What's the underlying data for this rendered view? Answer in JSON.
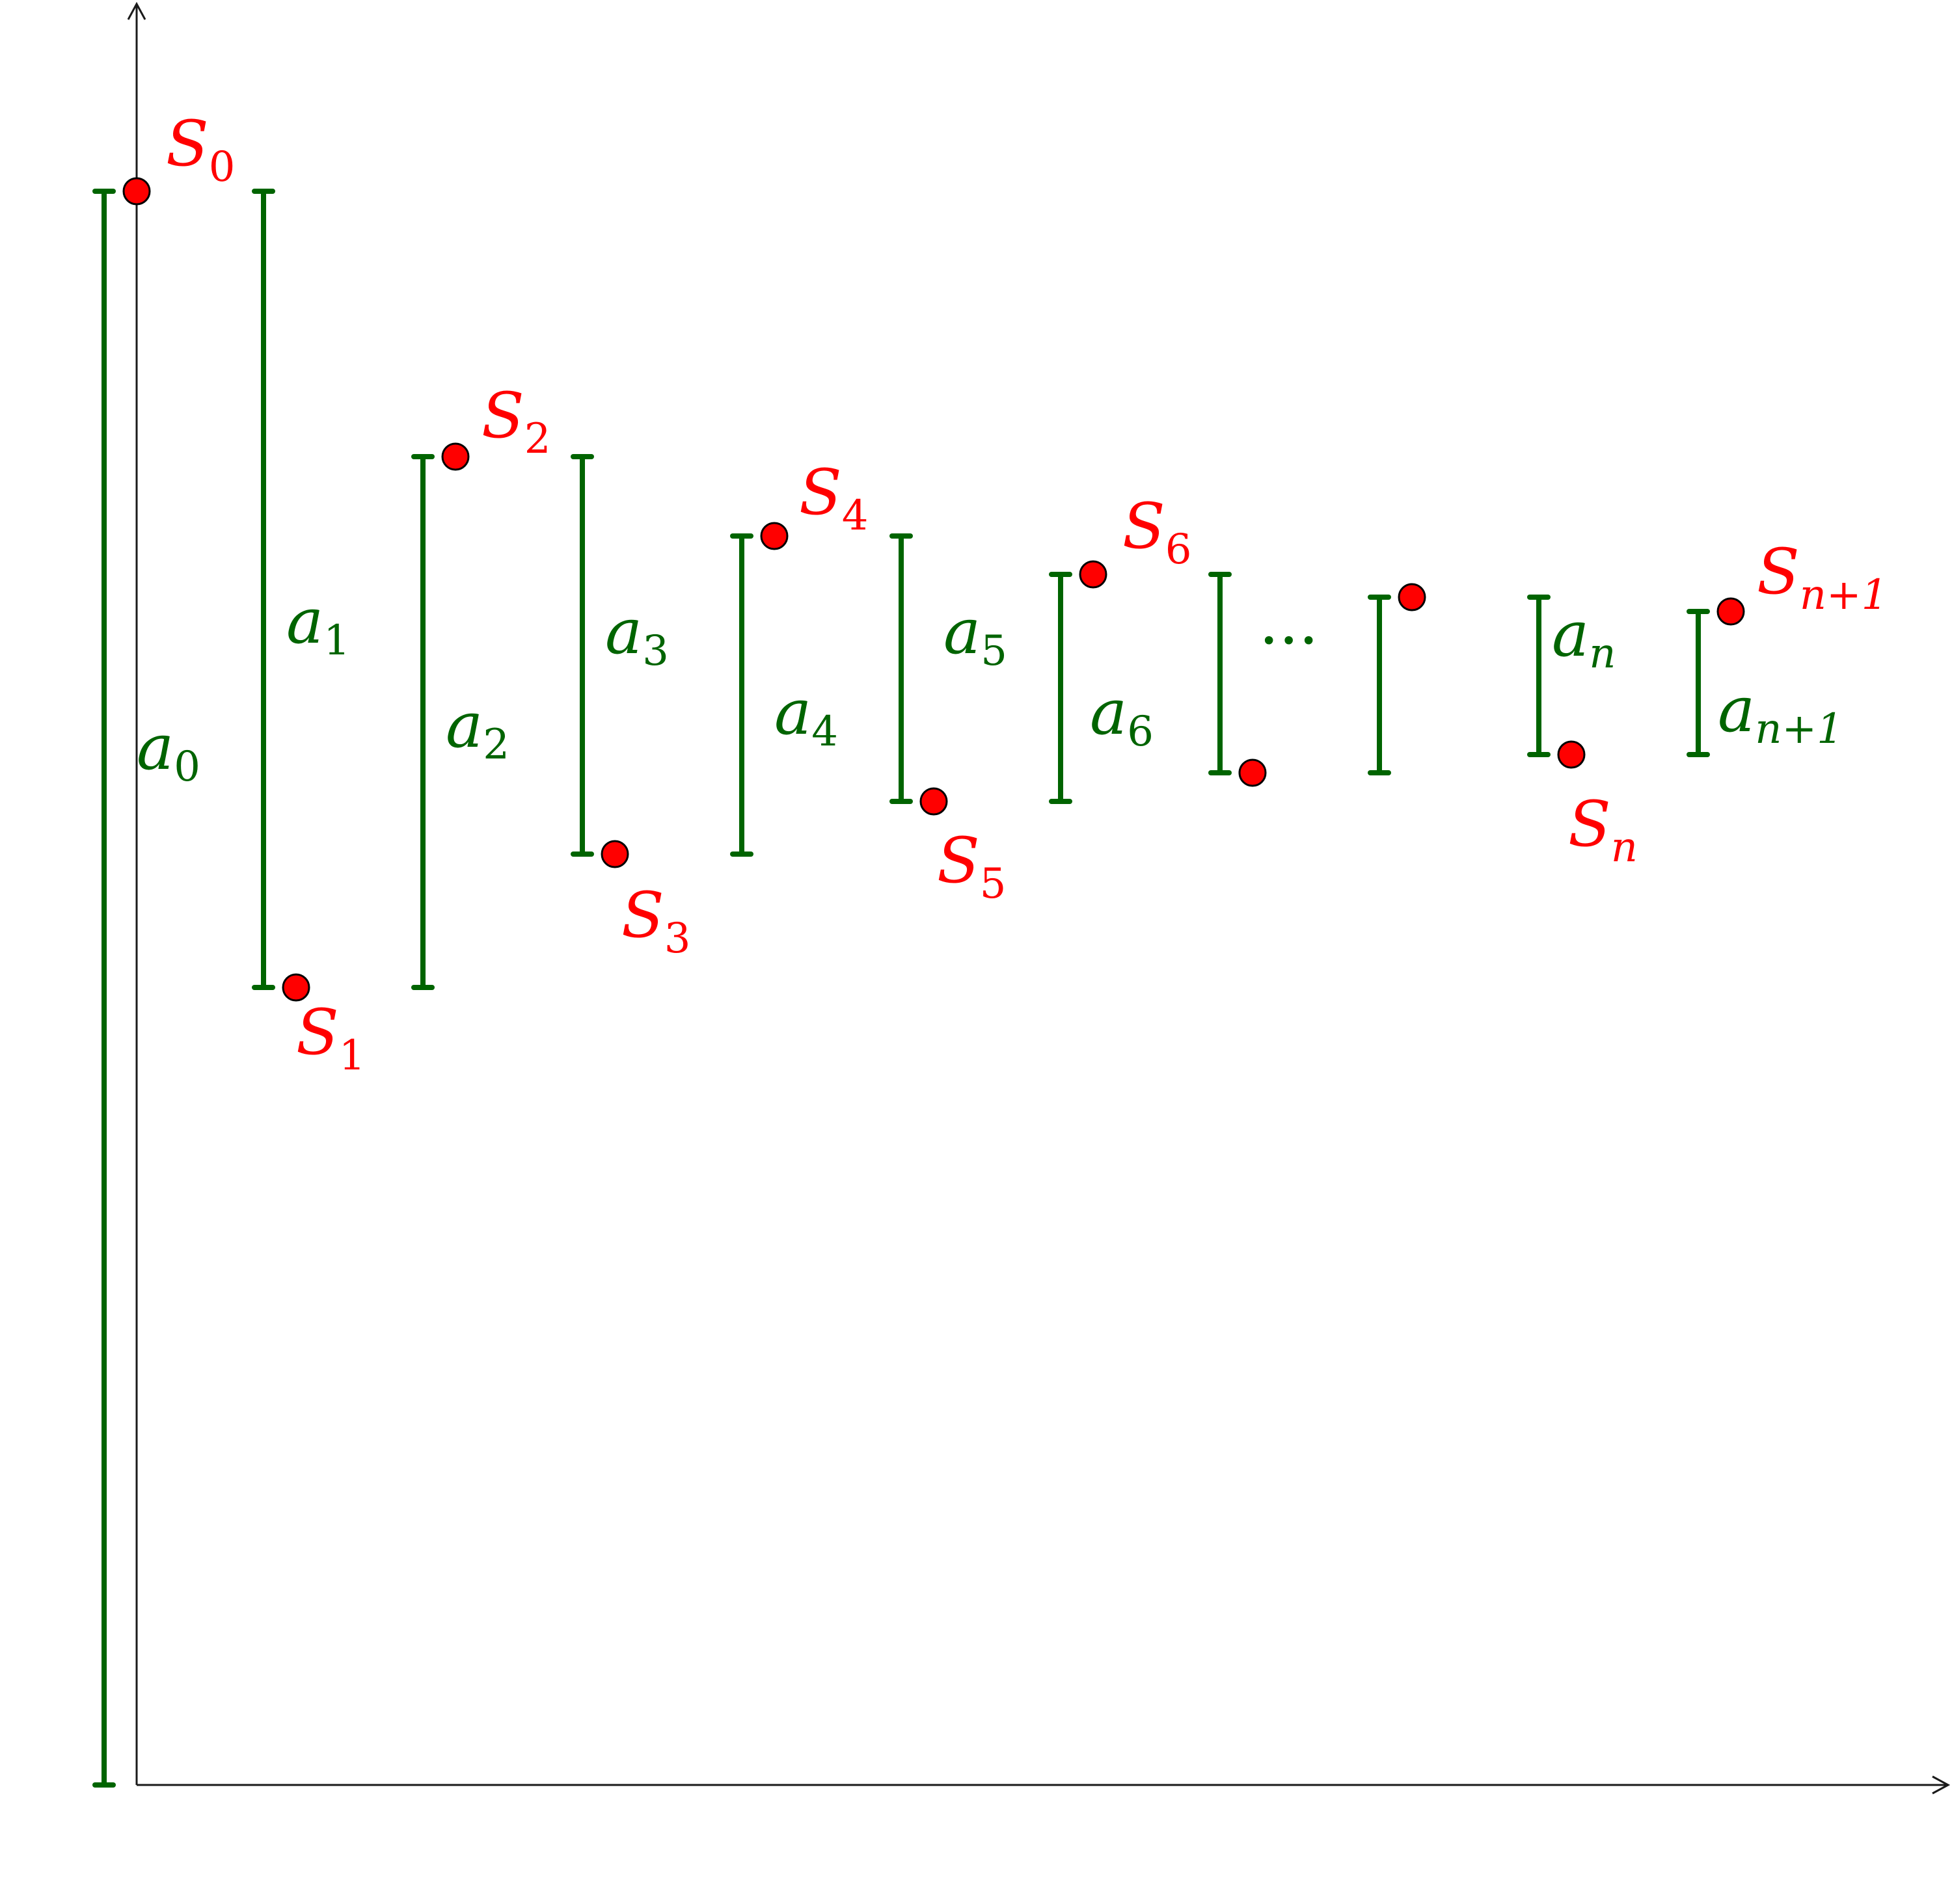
{
  "diagram": {
    "terms": [
      {
        "name": "a",
        "sub": "0"
      },
      {
        "name": "a",
        "sub": "1"
      },
      {
        "name": "a",
        "sub": "2"
      },
      {
        "name": "a",
        "sub": "3"
      },
      {
        "name": "a",
        "sub": "4"
      },
      {
        "name": "a",
        "sub": "5"
      },
      {
        "name": "a",
        "sub": "6"
      },
      {
        "name": "a",
        "sub": "n"
      },
      {
        "name": "a",
        "sub": "n+1"
      }
    ],
    "sums": [
      {
        "name": "S",
        "sub": "0"
      },
      {
        "name": "S",
        "sub": "1"
      },
      {
        "name": "S",
        "sub": "2"
      },
      {
        "name": "S",
        "sub": "3"
      },
      {
        "name": "S",
        "sub": "4"
      },
      {
        "name": "S",
        "sub": "5"
      },
      {
        "name": "S",
        "sub": "6"
      },
      {
        "name": "S",
        "sub": "n"
      },
      {
        "name": "S",
        "sub": "n+1"
      }
    ],
    "ellipsis": "···",
    "colors": {
      "terms": "#006400",
      "sums": "#ff0000",
      "axes": "#1a1a1a"
    }
  }
}
